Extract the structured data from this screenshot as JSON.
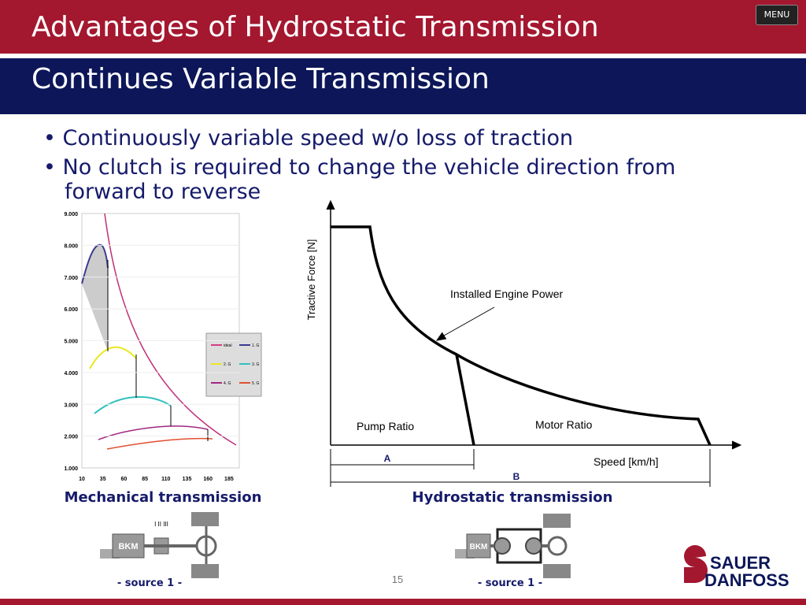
{
  "header": {
    "title": "Advantages of Hydrostatic Transmission",
    "subtitle": "Continues Variable Transmission",
    "menu": "MENU"
  },
  "bullets": [
    "Continuously variable speed w/o loss of traction",
    "No clutch is required to change the vehicle direction from forward to reverse"
  ],
  "mechanical_chart": {
    "yticks": [
      "9.000",
      "8.000",
      "7.000",
      "6.000",
      "5.000",
      "4.000",
      "3.000",
      "2.000",
      "1.000"
    ],
    "xticks": [
      "10",
      "35",
      "60",
      "85",
      "110",
      "135",
      "160",
      "185"
    ],
    "legend": [
      "ideal",
      "1. G",
      "2. G",
      "3. G",
      "4. G",
      "5. G"
    ]
  },
  "hydrostatic_chart": {
    "y_label": "Tractive Force [N]",
    "x_label": "Speed [km/h]",
    "annotation": "Installed Engine Power",
    "pump": "Pump Ratio",
    "motor": "Motor Ratio",
    "a": "A",
    "b": "B"
  },
  "captions": [
    "Mechanical transmission",
    "Hydrostatic transmission"
  ],
  "schematics": {
    "mech_box": "BKM",
    "gears": "I II III",
    "hydro_box": "BKM"
  },
  "sources": [
    "- source 1 -",
    "- source 1 -"
  ],
  "page_number": "15",
  "logo": [
    "SAUER",
    "DANFOSS"
  ]
}
